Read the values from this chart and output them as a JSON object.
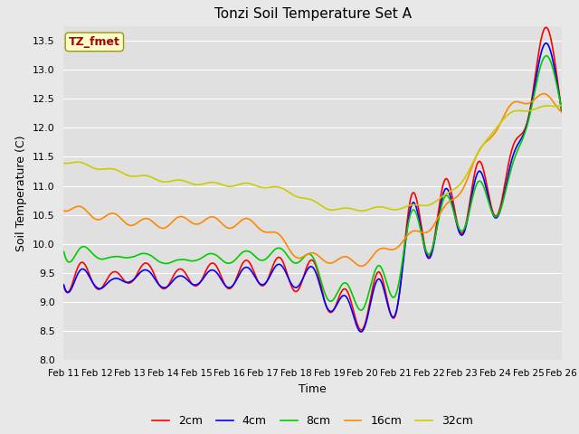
{
  "title": "Tonzi Soil Temperature Set A",
  "xlabel": "Time",
  "ylabel": "Soil Temperature (C)",
  "ylim": [
    8.0,
    13.75
  ],
  "yticks": [
    8.0,
    8.5,
    9.0,
    9.5,
    10.0,
    10.5,
    11.0,
    11.5,
    12.0,
    12.5,
    13.0,
    13.5
  ],
  "annotation_text": "TZ_fmet",
  "annotation_color": "#aa0000",
  "annotation_bg": "#ffffcc",
  "annotation_border": "#999900",
  "colors": {
    "2cm": "#ff0000",
    "4cm": "#0000ff",
    "8cm": "#00cc00",
    "16cm": "#ff8800",
    "32cm": "#cccc00"
  },
  "linewidth": 1.2,
  "fig_bg": "#e8e8e8",
  "plot_bg": "#e0e0e0",
  "legend_bg": "#ffffff",
  "grid_color": "#ffffff",
  "x_labels": [
    "Feb 11",
    "Feb 12",
    "Feb 13",
    "Feb 14",
    "Feb 15",
    "Feb 16",
    "Feb 17",
    "Feb 18",
    "Feb 19",
    "Feb 20",
    "Feb 21",
    "Feb 22",
    "Feb 23",
    "Feb 24",
    "Feb 25",
    "Feb 26"
  ]
}
